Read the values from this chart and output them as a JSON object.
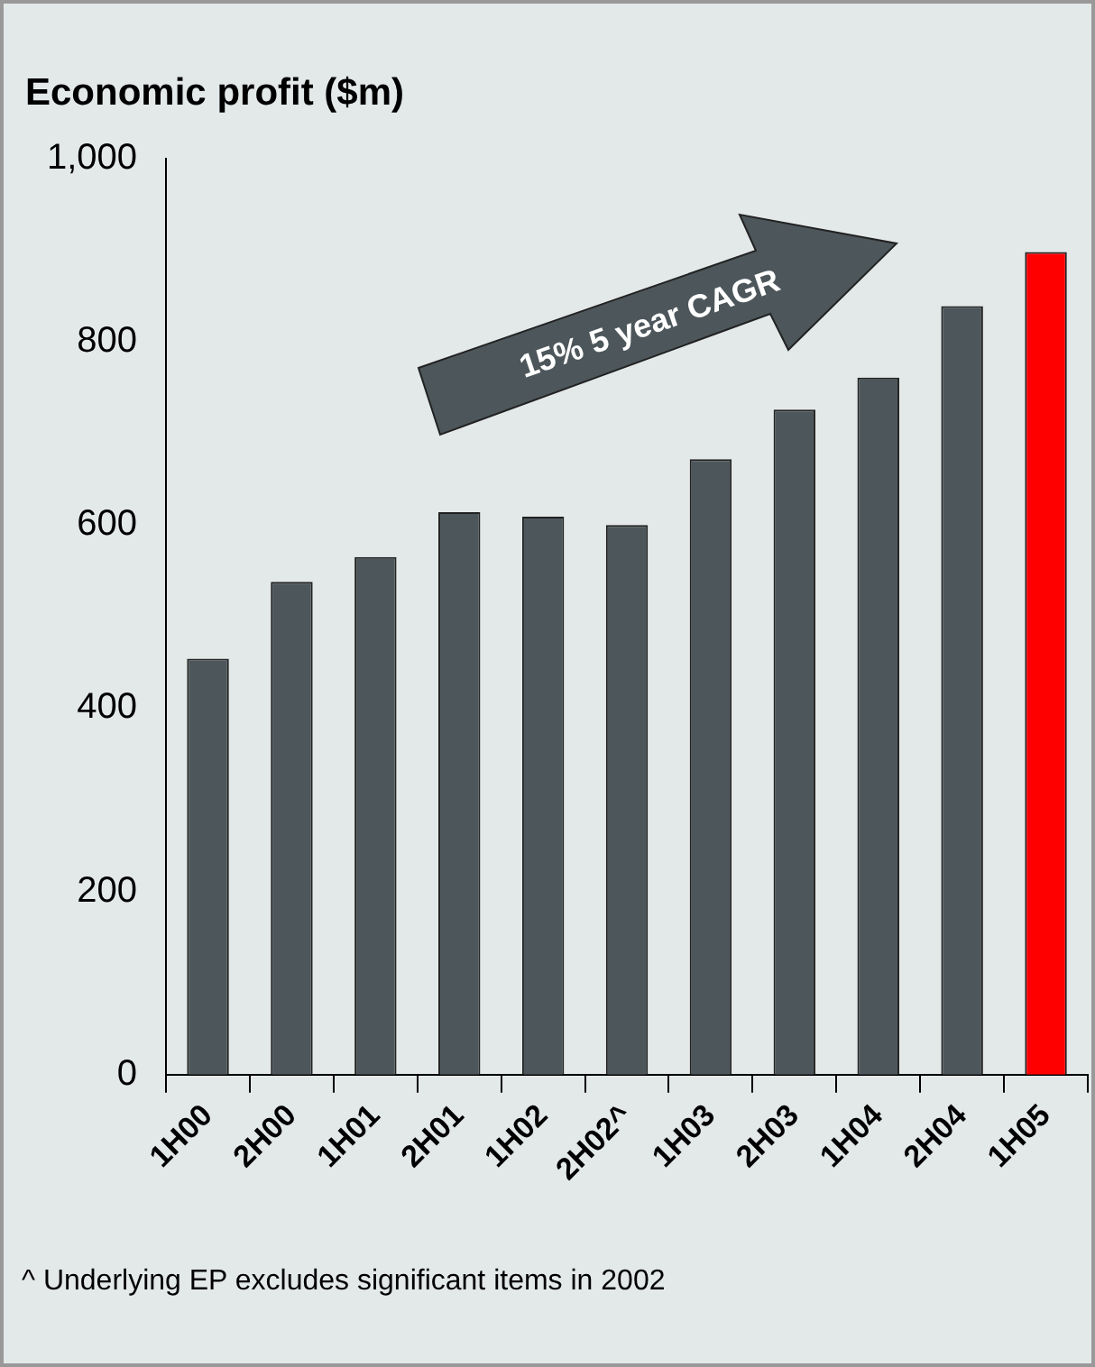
{
  "chart_data": {
    "type": "bar",
    "title": "Economic profit ($m)",
    "categories": [
      "1H00",
      "2H00",
      "1H01",
      "2H01",
      "1H02",
      "2H02^",
      "1H03",
      "2H03",
      "1H04",
      "2H04",
      "1H05"
    ],
    "values": [
      454,
      538,
      565,
      614,
      609,
      600,
      672,
      726,
      761,
      839,
      898
    ],
    "colors": [
      "#4d575b",
      "#4d575b",
      "#4d575b",
      "#4d575b",
      "#4d575b",
      "#4d575b",
      "#4d575b",
      "#4d575b",
      "#4d575b",
      "#4d575b",
      "#ff0000"
    ],
    "ylim": [
      0,
      1000
    ],
    "yticks": [
      0,
      200,
      400,
      600,
      800,
      {
        "value": 1000,
        "label": "1,000"
      }
    ],
    "grid": false,
    "legend": false,
    "annotations": [
      "15% 5 year CAGR",
      "^ Underlying EP excludes significant items in 2002"
    ]
  }
}
